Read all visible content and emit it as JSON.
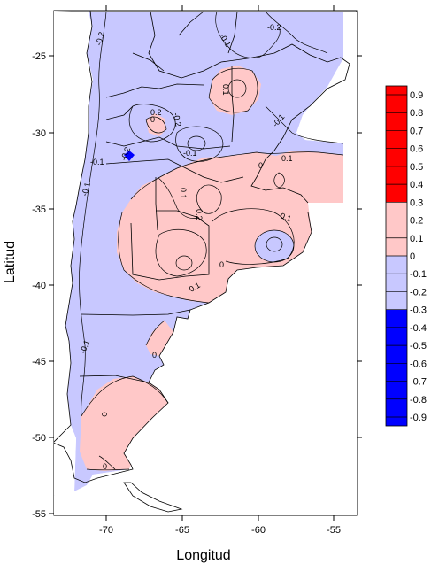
{
  "axes": {
    "xlabel": "Longitud",
    "ylabel": "Latitud",
    "x_ticks": [
      "-70",
      "-65",
      "-60",
      "-55"
    ],
    "y_ticks": [
      "-25",
      "-30",
      "-35",
      "-40",
      "-45",
      "-50",
      "-55"
    ]
  },
  "legend": {
    "labels": [
      "0.9",
      "0.8",
      "0.7",
      "0.6",
      "0.5",
      "0.4",
      "0.3",
      "0.2",
      "0.1",
      "0",
      "-0.1",
      "-0.2",
      "-0.3",
      "-0.4",
      "-0.5",
      "-0.6",
      "-0.7",
      "-0.8",
      "-0.9"
    ],
    "colors": {
      "strong_positive": "#ff0000",
      "weak_positive": "#ffc8c8",
      "weak_negative": "#c8c8ff",
      "strong_negative": "#0000ff"
    }
  },
  "contour_labels": [
    "-0.2",
    "-0.2",
    "-0.2",
    "-0.1",
    "-0.1",
    "-0.1",
    "-0.1",
    "-0.1",
    "-0.1",
    "0.1",
    "0.1",
    "0.1",
    "0.1",
    "0.2",
    "0.2",
    "0",
    "0",
    "0",
    "0",
    "0",
    "-0.2",
    "0.1"
  ]
}
